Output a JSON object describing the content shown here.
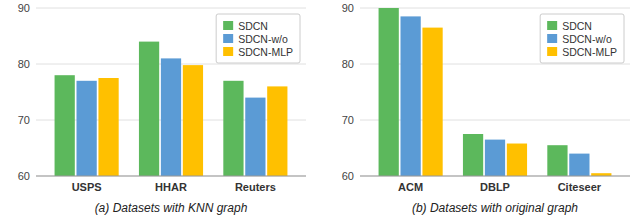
{
  "chart_data": [
    {
      "type": "bar",
      "categories": [
        "USPS",
        "HHAR",
        "Reuters"
      ],
      "series": [
        {
          "name": "SDCN",
          "color": "#5cb85c",
          "values": [
            78.0,
            84.0,
            77.0
          ]
        },
        {
          "name": "SDCN-w/o",
          "color": "#5b9bd5",
          "values": [
            77.0,
            81.0,
            74.0
          ]
        },
        {
          "name": "SDCN-MLP",
          "color": "#ffc000",
          "values": [
            77.5,
            79.8,
            76.0
          ]
        }
      ],
      "ylim": [
        60,
        90
      ],
      "yticks": [
        60,
        70,
        80,
        90
      ],
      "xlabel": "(a)  Datasets with KNN graph",
      "grid": true,
      "legend": "upper right"
    },
    {
      "type": "bar",
      "categories": [
        "ACM",
        "DBLP",
        "Citeseer"
      ],
      "series": [
        {
          "name": "SDCN",
          "color": "#5cb85c",
          "values": [
            90.0,
            67.5,
            65.5
          ]
        },
        {
          "name": "SDCN-w/o",
          "color": "#5b9bd5",
          "values": [
            88.5,
            66.5,
            64.0
          ]
        },
        {
          "name": "SDCN-MLP",
          "color": "#ffc000",
          "values": [
            86.5,
            65.8,
            60.5
          ]
        }
      ],
      "ylim": [
        60,
        90
      ],
      "yticks": [
        60,
        70,
        80,
        90
      ],
      "xlabel": "(b)  Datasets with original graph",
      "grid": true,
      "legend": "upper right"
    }
  ]
}
